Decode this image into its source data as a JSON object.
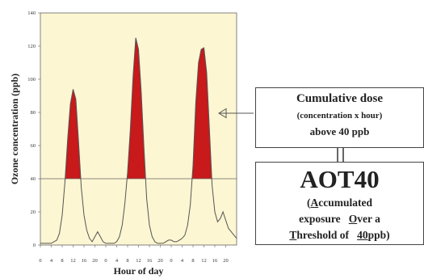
{
  "chart_data": {
    "type": "area",
    "xlabel": "Hour of day",
    "ylabel": "Ozone concentration (ppb)",
    "xtick_labels": [
      "0",
      "4",
      "8",
      "12",
      "16",
      "20",
      "0",
      "4",
      "8",
      "12",
      "16",
      "20",
      "0",
      "4",
      "8",
      "12",
      "16",
      "20"
    ],
    "yticks": [
      0,
      20,
      40,
      60,
      80,
      100,
      120,
      140
    ],
    "ylim": [
      0,
      140
    ],
    "xlim": [
      0,
      72
    ],
    "threshold": 40,
    "grid": false,
    "series": [
      {
        "x": [
          0,
          2,
          4,
          6,
          7,
          8,
          9,
          10,
          11,
          12,
          13,
          14,
          15,
          16,
          17,
          18,
          19,
          20,
          21,
          22,
          23,
          24,
          25,
          26,
          27,
          28,
          29,
          30,
          31,
          32,
          33,
          34,
          35,
          36,
          37,
          38,
          39,
          40,
          41,
          42,
          43,
          44,
          45,
          46,
          47,
          48,
          49,
          50,
          51,
          52,
          53,
          54,
          55,
          56,
          57,
          58,
          59,
          60,
          61,
          62,
          63,
          64,
          65,
          66,
          67,
          68,
          69,
          70,
          71,
          72
        ],
        "y": [
          1,
          1,
          1,
          3,
          7,
          18,
          38,
          64,
          85,
          94,
          88,
          62,
          35,
          18,
          9,
          4,
          2,
          5,
          8,
          5,
          2,
          1,
          1,
          1,
          1,
          2,
          5,
          12,
          25,
          44,
          70,
          102,
          125,
          118,
          92,
          58,
          28,
          12,
          5,
          2,
          1,
          1,
          1,
          2,
          3,
          3,
          2,
          2,
          3,
          4,
          6,
          12,
          24,
          48,
          86,
          110,
          118,
          119,
          104,
          70,
          36,
          20,
          14,
          16,
          20,
          15,
          10,
          8,
          6,
          4
        ]
      }
    ],
    "colors": {
      "background": "#fcf6d2",
      "fill_above_threshold": "#c8191b",
      "line": "#555555"
    }
  },
  "dose_box": {
    "line1": "Cumulative dose",
    "line2": "(concentration x hour)",
    "line3": "above 40 ppb"
  },
  "aot_box": {
    "title": "AOT40",
    "p1_open": "(",
    "p1_u": "A",
    "p1_rest": "ccumulated",
    "p2_a": "exposure",
    "p2_u": "O",
    "p2_rest": "ver a",
    "p3_u": "T",
    "p3_rest": "hreshold of",
    "p3_num": "40",
    "p3_end": "ppb)"
  }
}
